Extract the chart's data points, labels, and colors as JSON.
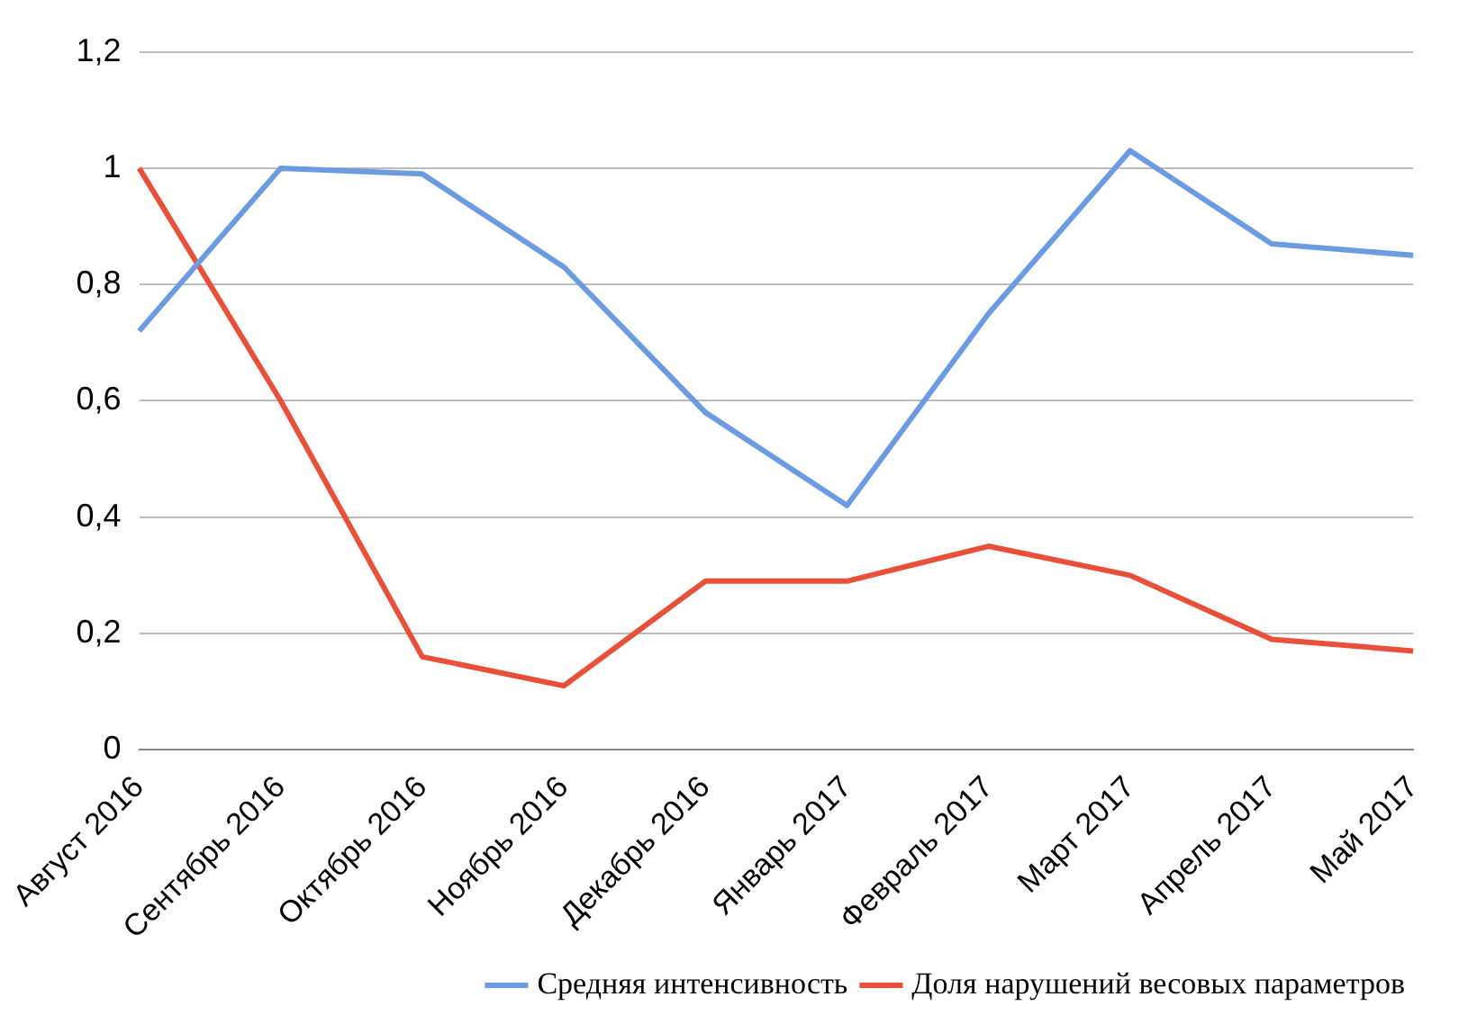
{
  "chart_data": {
    "type": "line",
    "categories": [
      "Август 2016",
      "Сентябрь 2016",
      "Октябрь 2016",
      "Ноябрь 2016",
      "Декабрь 2016",
      "Январь 2017",
      "Февраль 2017",
      "Март 2017",
      "Апрель 2017",
      "Май 2017"
    ],
    "series": [
      {
        "name": "Средняя интенсивность",
        "color": "#6b9be0",
        "values": [
          0.72,
          1.0,
          0.99,
          0.83,
          0.58,
          0.42,
          0.75,
          1.03,
          0.87,
          0.85
        ]
      },
      {
        "name": "Доля нарушений весовых параметров",
        "color": "#e8503a",
        "values": [
          1.0,
          0.6,
          0.16,
          0.11,
          0.29,
          0.29,
          0.35,
          0.3,
          0.19,
          0.17
        ]
      }
    ],
    "ylim": [
      0,
      1.2
    ],
    "yticks": [
      {
        "value": 0,
        "label": "0"
      },
      {
        "value": 0.2,
        "label": "0,2"
      },
      {
        "value": 0.4,
        "label": "0,4"
      },
      {
        "value": 0.6,
        "label": "0,6"
      },
      {
        "value": 0.8,
        "label": "0,8"
      },
      {
        "value": 1,
        "label": "1"
      },
      {
        "value": 1.2,
        "label": "1,2"
      }
    ],
    "grid": "y",
    "legend": "bottom",
    "marker": "none",
    "line_style": "solid"
  }
}
